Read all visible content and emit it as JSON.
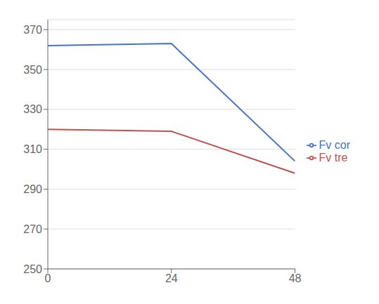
{
  "chart_data": {
    "type": "line",
    "x": [
      0,
      24,
      48
    ],
    "series": [
      {
        "name": "Fv cor",
        "color": "#4472C4",
        "values": [
          362,
          363,
          304
        ]
      },
      {
        "name": "Fv tre",
        "color": "#C0504D",
        "values": [
          320,
          319,
          298
        ]
      }
    ],
    "xlim": [
      0,
      48
    ],
    "xticks": [
      0,
      24,
      48
    ],
    "ylim": [
      250,
      375
    ],
    "yticks": [
      250,
      270,
      290,
      310,
      330,
      350,
      370
    ],
    "grid": true,
    "legend": "right"
  }
}
